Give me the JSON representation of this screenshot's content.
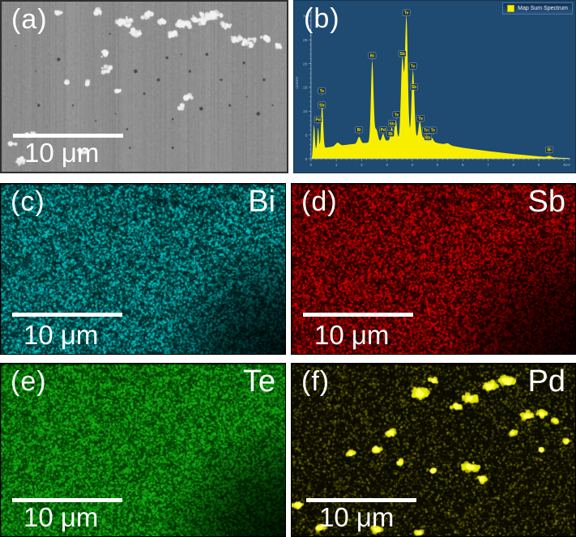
{
  "panels": {
    "a": {
      "label": "(a)",
      "scalebar_text": "10 μm"
    },
    "b": {
      "label": "(b)"
    },
    "c": {
      "label": "(c)",
      "element": "Bi",
      "scalebar_text": "10 μm",
      "map_color": "#00cccc"
    },
    "d": {
      "label": "(d)",
      "element": "Sb",
      "scalebar_text": "10 μm",
      "map_color": "#e00000"
    },
    "e": {
      "label": "(e)",
      "element": "Te",
      "scalebar_text": "10 μm",
      "map_color": "#17b917"
    },
    "f": {
      "label": "(f)",
      "element": "Pd",
      "scalebar_text": "10 μm",
      "map_color": "#d2d200"
    }
  },
  "chart_data": {
    "type": "area",
    "title": "Map Sum Spectrum",
    "legend_label": "Map Sum Spectrum",
    "xlabel": "keV",
    "ylabel": "cps/eV",
    "xlim": [
      0,
      10.25
    ],
    "ylim": [
      0,
      32
    ],
    "x_ticks": [
      0,
      1,
      2,
      3,
      4,
      5,
      6,
      7,
      8,
      9
    ],
    "y_ticks": [
      0,
      5,
      10,
      15,
      20,
      25,
      30
    ],
    "series_color": "#f8ef00",
    "plot_background": "#1f4a72",
    "axis_color": "#a6bdd2",
    "continuum": [
      [
        0.03,
        0
      ],
      [
        0.08,
        1.8
      ],
      [
        0.3,
        2.1
      ],
      [
        0.8,
        2.5
      ],
      [
        1.5,
        3.0
      ],
      [
        2.5,
        3.5
      ],
      [
        3.5,
        4.1
      ],
      [
        4.4,
        4.4
      ],
      [
        5.0,
        3.3
      ],
      [
        5.6,
        2.7
      ],
      [
        6.0,
        2.3
      ],
      [
        7.0,
        1.6
      ],
      [
        8.0,
        1.0
      ],
      [
        9.0,
        0.5
      ],
      [
        9.8,
        0.22
      ],
      [
        10.2,
        0.15
      ]
    ],
    "peaks": [
      {
        "center": 0.12,
        "height": 5.2,
        "sigma": 0.03
      },
      {
        "center": 0.28,
        "height": 4.4,
        "sigma": 0.03
      },
      {
        "center": 0.44,
        "height": 9.2,
        "sigma": 0.04
      },
      {
        "center": 1.05,
        "height": 0.7,
        "sigma": 0.08
      },
      {
        "center": 1.9,
        "height": 1.4,
        "sigma": 0.06
      },
      {
        "center": 2.42,
        "height": 17.0,
        "sigma": 0.05
      },
      {
        "center": 2.58,
        "height": 2.6,
        "sigma": 0.06
      },
      {
        "center": 2.85,
        "height": 1.5,
        "sigma": 0.05
      },
      {
        "center": 3.19,
        "height": 2.6,
        "sigma": 0.045
      },
      {
        "center": 3.35,
        "height": 4.1,
        "sigma": 0.045
      },
      {
        "center": 3.61,
        "height": 16.8,
        "sigma": 0.055
      },
      {
        "center": 3.77,
        "height": 25.5,
        "sigma": 0.055
      },
      {
        "center": 4.03,
        "height": 14.2,
        "sigma": 0.055
      },
      {
        "center": 4.3,
        "height": 3.4,
        "sigma": 0.05
      },
      {
        "center": 4.57,
        "height": 1.1,
        "sigma": 0.05
      },
      {
        "center": 4.78,
        "height": 0.7,
        "sigma": 0.05
      },
      {
        "center": 5.4,
        "height": 0.35,
        "sigma": 0.08
      },
      {
        "center": 9.42,
        "height": 0.25,
        "sigma": 0.07
      }
    ],
    "peak_labels": [
      {
        "text": "Pd",
        "x": 0.28,
        "y": 8.2
      },
      {
        "text": "Sb",
        "x": 0.43,
        "y": 11.3
      },
      {
        "text": "Te",
        "x": 0.43,
        "y": 14.3
      },
      {
        "text": "Bi",
        "x": 1.9,
        "y": 6.1
      },
      {
        "text": "Bi",
        "x": 2.42,
        "y": 21.7
      },
      {
        "text": "Pd",
        "x": 2.85,
        "y": 6.1
      },
      {
        "text": "Bi",
        "x": 3.14,
        "y": 5.3
      },
      {
        "text": "Sb",
        "x": 3.2,
        "y": 7.4
      },
      {
        "text": "Te",
        "x": 3.38,
        "y": 9.3
      },
      {
        "text": "Sb",
        "x": 3.61,
        "y": 22.1
      },
      {
        "text": "Te",
        "x": 3.77,
        "y": 30.7
      },
      {
        "text": "Te",
        "x": 4.03,
        "y": 19.5
      },
      {
        "text": "Sb",
        "x": 4.07,
        "y": 15.1
      },
      {
        "text": "Te",
        "x": 4.33,
        "y": 8.5
      },
      {
        "text": "Te",
        "x": 4.55,
        "y": 6.0
      },
      {
        "text": "Sb",
        "x": 4.62,
        "y": 4.5
      },
      {
        "text": "Te",
        "x": 4.82,
        "y": 6.0
      },
      {
        "text": "Bi",
        "x": 9.42,
        "y": 1.9
      }
    ]
  }
}
